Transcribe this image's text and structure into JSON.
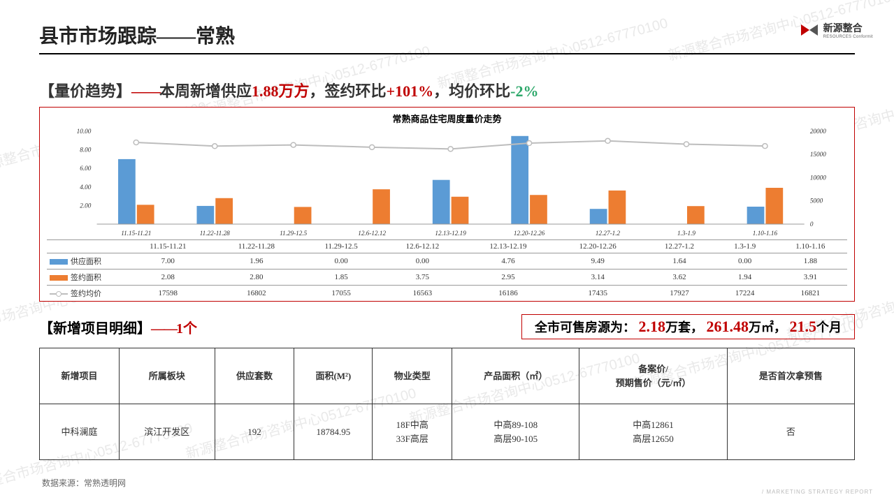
{
  "page_title": "县市市场跟踪——常熟",
  "logo": {
    "name": "新源整合",
    "sub": "RESOURCES Conformit"
  },
  "trend": {
    "label": "【量价趋势】",
    "dash": "——",
    "t1": "本周新增供应",
    "v1": "1.88万方",
    "t2": "，签约环比",
    "v2": "+101%",
    "t3": "，均价环比",
    "v3": "-2%"
  },
  "chart": {
    "title": "常熟商品住宅周度量价走势",
    "y_left_label": "",
    "y_left_ticks": [
      "10.00",
      "8.00",
      "6.00",
      "4.00",
      "2.00"
    ],
    "y_right_ticks": [
      "20000",
      "15000",
      "10000",
      "5000",
      "0"
    ],
    "y_left_min": 0,
    "y_left_max": 10,
    "y_right_min": 0,
    "y_right_max": 20000,
    "categories": [
      "11.15-11.21",
      "11.22-11.28",
      "11.29-12.5",
      "12.6-12.12",
      "12.13-12.19",
      "12.20-12.26",
      "12.27-1.2",
      "1.3-1.9",
      "1.10-1.16"
    ],
    "series": [
      {
        "name": "供应面积",
        "type": "bar",
        "color": "#5b9bd5",
        "values": [
          7.0,
          1.96,
          0.0,
          0.0,
          4.76,
          9.49,
          1.64,
          0.0,
          1.88
        ]
      },
      {
        "name": "签约面积",
        "type": "bar",
        "color": "#ed7d31",
        "values": [
          2.08,
          2.8,
          1.85,
          3.75,
          2.95,
          3.14,
          3.62,
          1.94,
          3.91
        ]
      },
      {
        "name": "签约均价",
        "type": "line",
        "color": "#bdbdbd",
        "values": [
          17598,
          16802,
          17055,
          16563,
          16186,
          17435,
          17927,
          17224,
          16821
        ]
      }
    ],
    "bar_colors": {
      "supply": "#5b9bd5",
      "sign": "#ed7d31"
    },
    "line_color": "#bdbdbd",
    "bg": "#ffffff"
  },
  "new_projects": {
    "title": "【新增项目明细】",
    "dash": "——",
    "count": "1个"
  },
  "summary": {
    "prefix": "全市可售房源为：",
    "v1": "2.18",
    "u1": "万套，",
    "v2": "261.48",
    "u2": "万㎡，",
    "v3": "21.5",
    "u3": "个月"
  },
  "detail_table": {
    "headers": [
      "新增项目",
      "所属板块",
      "供应套数",
      "面积(M²)",
      "物业类型",
      "产品面积（㎡）",
      "备案价/\n预期售价（元/㎡）",
      "是否首次拿预售"
    ],
    "rows": [
      [
        "中科澜庭",
        "滨江开发区",
        "192",
        "18784.95",
        "18F中高\n33F高层",
        "中高89-108\n高层90-105",
        "中高12861\n高层12650",
        "否"
      ]
    ]
  },
  "footer": "数据来源：常熟透明网",
  "footer_right": "/ MARKETING STRATEGY REPORT",
  "watermark": "新源整合市场咨询中心0512-67770100"
}
